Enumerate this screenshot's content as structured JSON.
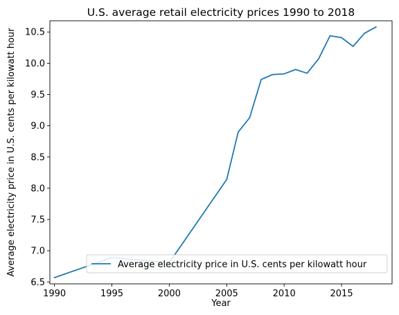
{
  "chart_data": {
    "type": "line",
    "title": "U.S. average retail electricity prices 1990 to 2018",
    "xlabel": "Year",
    "ylabel": "Average electricity price in U.S. cents per kilowatt hour",
    "xlim": [
      1989.6,
      2019.4
    ],
    "ylim": [
      6.47,
      10.68
    ],
    "xticks": [
      1990,
      1995,
      2000,
      2005,
      2010,
      2015
    ],
    "yticks": [
      6.5,
      7.0,
      7.5,
      8.0,
      8.5,
      9.0,
      9.5,
      10.0,
      10.5
    ],
    "grid": false,
    "legend_position": "lower right",
    "series": [
      {
        "name": "Average electricity price in U.S. cents per kilowatt hour",
        "color": "#1f77b4",
        "x": [
          1990,
          1995,
          2000,
          2005,
          2006,
          2007,
          2008,
          2009,
          2010,
          2011,
          2012,
          2013,
          2014,
          2015,
          2016,
          2017,
          2018
        ],
        "y": [
          6.57,
          6.89,
          6.81,
          8.14,
          8.9,
          9.13,
          9.74,
          9.82,
          9.83,
          9.9,
          9.84,
          10.07,
          10.44,
          10.41,
          10.27,
          10.48,
          10.58
        ]
      }
    ]
  }
}
